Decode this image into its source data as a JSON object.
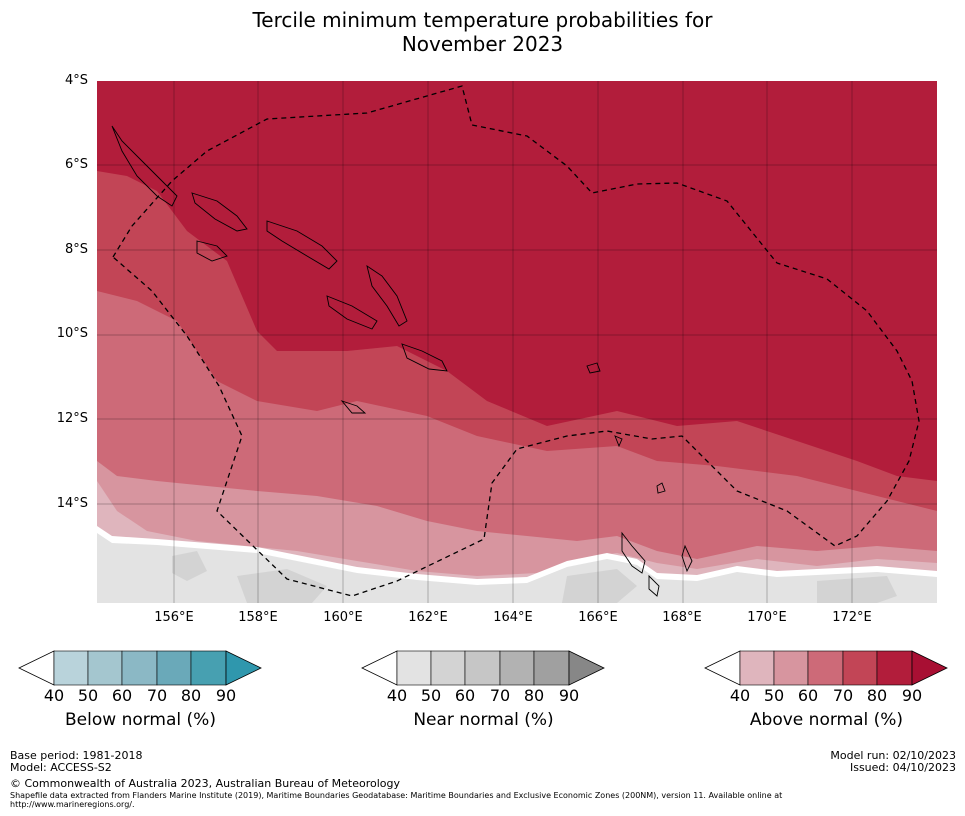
{
  "title_line1": "Tercile minimum temperature probabilities for",
  "title_line2": "November 2023",
  "lat_labels": [
    "4°S",
    "6°S",
    "8°S",
    "10°S",
    "12°S",
    "14°S"
  ],
  "lon_labels": [
    "156°E",
    "158°E",
    "160°E",
    "162°E",
    "164°E",
    "166°E",
    "168°E",
    "170°E",
    "172°E"
  ],
  "colors": {
    "above": [
      "#ffffff",
      "#dfb5bd",
      "#d7959f",
      "#cd6a78",
      "#c24556",
      "#b21d3b"
    ],
    "near": [
      "#ffffff",
      "#e3e3e3",
      "#d3d3d3",
      "#c6c6c6",
      "#b2b2b2",
      "#a0a0a0",
      "#878787"
    ],
    "below": [
      "#ffffff",
      "#b9d3db",
      "#a4c6cf",
      "#8bb8c5",
      "#6aa9b9",
      "#47a0b1",
      "#2f97ad"
    ]
  },
  "legends": {
    "below": {
      "label": "Below normal (%)",
      "ticks": [
        "40",
        "50",
        "60",
        "70",
        "80",
        "90"
      ]
    },
    "near": {
      "label": "Near normal (%)",
      "ticks": [
        "40",
        "50",
        "60",
        "70",
        "80",
        "90"
      ]
    },
    "above": {
      "label": "Above normal (%)",
      "ticks": [
        "40",
        "50",
        "60",
        "70",
        "80",
        "90"
      ]
    }
  },
  "footer": {
    "base_period": "Base period: 1981-2018",
    "model": "Model: ACCESS-S2",
    "model_run": "Model run: 02/10/2023",
    "issued": "Issued: 04/10/2023",
    "copyright": "© Commonwealth of Australia 2023, Australian Bureau of Meteorology",
    "shapefile_line1": "Shapefile data extracted from Flanders Marine Institute (2019), Maritime Boundaries Geodatabase: Maritime Boundaries and Exclusive Economic Zones (200NM), version 11. Available online at",
    "shapefile_line2": "http://www.marineregions.org/."
  }
}
